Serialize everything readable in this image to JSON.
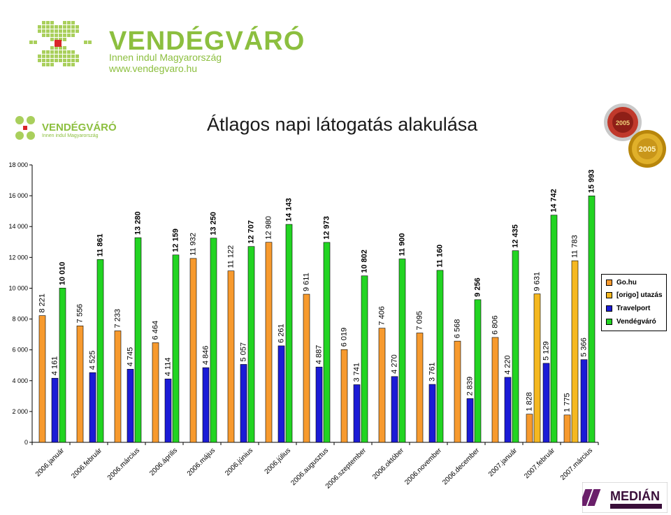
{
  "brand": {
    "name": "VENDÉGVÁRÓ",
    "tagline": "Innen indul Magyarország",
    "url": "www.vendegvaro.hu",
    "small_tagline": "Innen indul Magyarország"
  },
  "badges": {
    "year": "2005"
  },
  "median_logo": "MEDIÁN",
  "colors": {
    "gohu": "#f79a2e",
    "origo": "#f5b820",
    "travelport": "#1b1bd6",
    "vendegvaro": "#22d422",
    "brand_green": "#8cbf3f"
  },
  "chart_data": {
    "type": "bar",
    "title": "Átlagos napi látogatás alakulása",
    "ylim": [
      0,
      18000
    ],
    "yticks": [
      "0",
      "2 000",
      "4 000",
      "6 000",
      "8 000",
      "10 000",
      "12 000",
      "14 000",
      "16 000",
      "18 000"
    ],
    "ytick_values": [
      0,
      2000,
      4000,
      6000,
      8000,
      10000,
      12000,
      14000,
      16000,
      18000
    ],
    "grid": false,
    "legend_position": "right",
    "categories": [
      "2006.január",
      "2006.február",
      "2006.március",
      "2006.április",
      "2006.május",
      "2006.június",
      "2006.július",
      "2006.augusztus",
      "2006.szeptember",
      "2006.október",
      "2006.november",
      "2006.december",
      "2007.január",
      "2007.február",
      "2007.március"
    ],
    "series": [
      {
        "name": "Go.hu",
        "color": "#f79a2e",
        "values": [
          8221,
          7556,
          7233,
          6464,
          11932,
          11122,
          12980,
          9611,
          6019,
          7406,
          7095,
          6568,
          6806,
          1828,
          1775
        ],
        "labels": [
          "8 221",
          "7 556",
          "7 233",
          "6 464",
          "11 932",
          "11 122",
          "12 980",
          "9 611",
          "6 019",
          "7 406",
          "7 095",
          "6 568",
          "6 806",
          "1 828",
          "1 775"
        ]
      },
      {
        "name": "[origo] utazás",
        "color": "#f5b820",
        "values": [
          null,
          null,
          null,
          null,
          null,
          null,
          null,
          null,
          null,
          null,
          null,
          null,
          null,
          9631,
          11783
        ],
        "labels": [
          "",
          "",
          "",
          "",
          "",
          "",
          "",
          "",
          "",
          "",
          "",
          "",
          "",
          "9 631",
          "11 783"
        ]
      },
      {
        "name": "Travelport",
        "color": "#1b1bd6",
        "values": [
          4161,
          4525,
          4745,
          4114,
          4846,
          5057,
          6261,
          4887,
          3741,
          4270,
          3761,
          2839,
          4220,
          5129,
          5366
        ],
        "labels": [
          "4 161",
          "4 525",
          "4 745",
          "4 114",
          "4 846",
          "5 057",
          "6 261",
          "4 887",
          "3 741",
          "4 270",
          "3 761",
          "2 839",
          "4 220",
          "5 129",
          "5 366"
        ]
      },
      {
        "name": "Vendégváró",
        "color": "#22d422",
        "values": [
          10010,
          11861,
          13280,
          12159,
          13250,
          12707,
          14143,
          12973,
          10802,
          11900,
          11160,
          9256,
          12435,
          14742,
          15993
        ],
        "labels": [
          "10 010",
          "11 861",
          "13 280",
          "12 159",
          "13 250",
          "12 707",
          "14 143",
          "12 973",
          "10 802",
          "11 900",
          "11 160",
          "9 256",
          "12 435",
          "14 742",
          "15 993"
        ]
      }
    ]
  }
}
